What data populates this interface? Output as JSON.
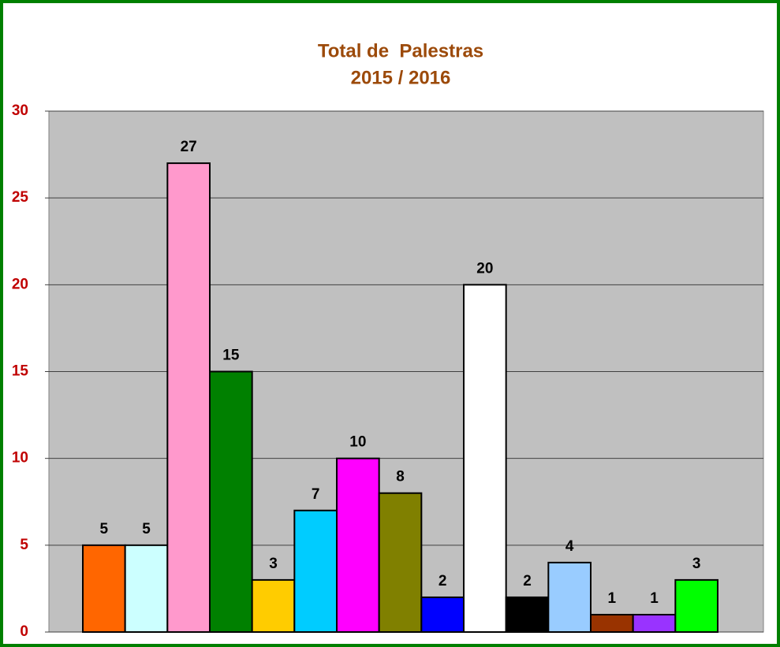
{
  "chart_data": {
    "type": "bar",
    "title": "Total de  Palestras",
    "subtitle": "2015 / 2016",
    "categories": [
      null,
      null,
      null,
      null,
      null,
      null,
      null,
      null,
      null,
      null,
      null,
      null,
      null,
      null,
      null
    ],
    "values": [
      5,
      5,
      27,
      15,
      3,
      7,
      10,
      8,
      2,
      20,
      2,
      4,
      1,
      1,
      3
    ],
    "colors": [
      "#ff6600",
      "#ccffff",
      "#ff99cc",
      "#008000",
      "#ffcc00",
      "#00ccff",
      "#ff00ff",
      "#808000",
      "#0000ff",
      "#ffffff",
      "#000000",
      "#99ccff",
      "#993300",
      "#9933ff",
      "#00ff00"
    ],
    "ylim": [
      0,
      30
    ],
    "yticks": [
      0,
      5,
      10,
      15,
      20,
      25,
      30
    ],
    "grid": true
  }
}
